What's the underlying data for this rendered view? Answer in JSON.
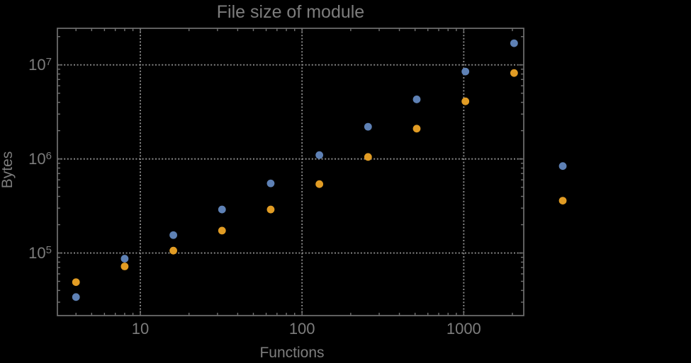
{
  "chart_data": {
    "type": "scatter",
    "title": "File size of module",
    "xlabel": "Functions",
    "ylabel": "Bytes",
    "xscale": "log",
    "yscale": "log",
    "x": [
      4,
      8,
      16,
      32,
      64,
      128,
      256,
      512,
      1024,
      2048,
      4096
    ],
    "series": [
      {
        "name": "blue",
        "color": "#5e81b5",
        "values": [
          34000,
          87000,
          155000,
          290000,
          550000,
          1100000,
          2200000,
          4300000,
          8500000,
          17000000,
          840000
        ]
      },
      {
        "name": "orange",
        "color": "#e19c24",
        "values": [
          49000,
          72000,
          106000,
          173000,
          290000,
          540000,
          1050000,
          2100000,
          4100000,
          8200000,
          360000
        ]
      }
    ],
    "xticks": {
      "major": [
        10,
        100,
        1000
      ],
      "labels": [
        "10",
        "100",
        "1000"
      ]
    },
    "yticks": {
      "base": 10,
      "exponents": [
        5,
        6,
        7
      ]
    },
    "xlim": [
      3.07,
      2350
    ],
    "ylim": [
      21600,
      24500000
    ],
    "grid": {
      "style": "dotted",
      "x_at": [
        10,
        100,
        1000
      ],
      "y_at": [
        100000,
        1000000,
        10000000
      ]
    },
    "legend": "none"
  },
  "style": {
    "background": "#000000",
    "frame_color": "#707070",
    "grid_color": "#8a8a8a",
    "text_color": "#7d7d7d",
    "point_radius": 5.4,
    "series_colors": [
      "#5e81b5",
      "#e19c24"
    ]
  }
}
